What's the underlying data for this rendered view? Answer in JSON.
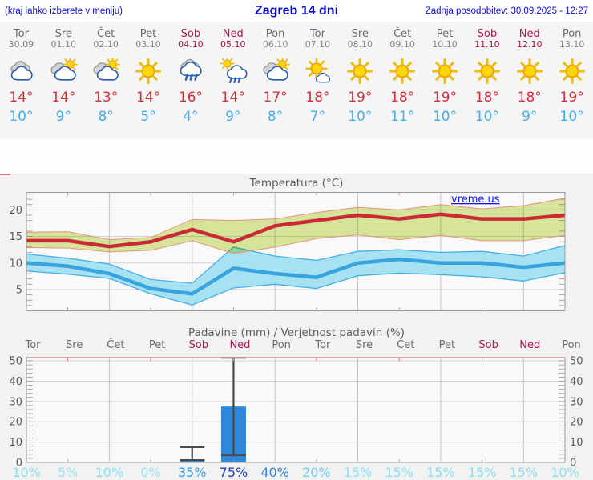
{
  "topbar": {
    "hint": "(kraj lahko izberete v meniju)",
    "title": "Zagreb 14 dni",
    "updated": "Zadnja posodobitev: 30.09.2025 - 12:27"
  },
  "watermark": "vreme.us",
  "forecast": {
    "days": [
      {
        "name": "Tor",
        "date": "30.09",
        "icon": "cloudy",
        "tmax": "14°",
        "tmin": "10°",
        "weekend": false
      },
      {
        "name": "Sre",
        "date": "01.10",
        "icon": "partly-cloudy",
        "tmax": "14°",
        "tmin": "9°",
        "weekend": false
      },
      {
        "name": "Čet",
        "date": "02.10",
        "icon": "partly-cloudy",
        "tmax": "13°",
        "tmin": "8°",
        "weekend": false
      },
      {
        "name": "Pet",
        "date": "03.10",
        "icon": "sunny",
        "tmax": "14°",
        "tmin": "5°",
        "weekend": false
      },
      {
        "name": "Sob",
        "date": "04.10",
        "icon": "rain",
        "tmax": "16°",
        "tmin": "4°",
        "weekend": true
      },
      {
        "name": "Ned",
        "date": "05.10",
        "icon": "sun-shower",
        "tmax": "14°",
        "tmin": "9°",
        "weekend": true
      },
      {
        "name": "Pon",
        "date": "06.10",
        "icon": "partly-cloudy",
        "tmax": "17°",
        "tmin": "8°",
        "weekend": false
      },
      {
        "name": "Tor",
        "date": "07.10",
        "icon": "mostly-sunny",
        "tmax": "18°",
        "tmin": "7°",
        "weekend": false
      },
      {
        "name": "Sre",
        "date": "08.10",
        "icon": "sunny",
        "tmax": "19°",
        "tmin": "10°",
        "weekend": false
      },
      {
        "name": "Čet",
        "date": "09.10",
        "icon": "sunny",
        "tmax": "18°",
        "tmin": "11°",
        "weekend": false
      },
      {
        "name": "Pet",
        "date": "10.10",
        "icon": "sunny",
        "tmax": "19°",
        "tmin": "10°",
        "weekend": false
      },
      {
        "name": "Sob",
        "date": "11.10",
        "icon": "sunny",
        "tmax": "18°",
        "tmin": "10°",
        "weekend": true
      },
      {
        "name": "Ned",
        "date": "12.10",
        "icon": "sunny",
        "tmax": "18°",
        "tmin": "9°",
        "weekend": true
      },
      {
        "name": "Pon",
        "date": "13.10",
        "icon": "sunny",
        "tmax": "19°",
        "tmin": "10°",
        "weekend": false
      }
    ]
  },
  "chart_data": [
    {
      "type": "line",
      "title": "Temperatura (°C)",
      "ylim": [
        1,
        23.3
      ],
      "yticks": [
        5,
        10,
        15,
        20
      ],
      "grid": "on",
      "legend_position": "none",
      "watermark": "vreme.us",
      "series": [
        {
          "name": "tmax",
          "label": "max temperatura",
          "color": "#c92a35",
          "values": [
            14.2,
            14.2,
            13.1,
            14,
            16.3,
            14,
            17,
            18,
            19,
            18.3,
            19.2,
            18.3,
            18.3,
            19
          ]
        },
        {
          "name": "tmax_upper",
          "label": "max razpon zgornja meja",
          "color": "#dcea9e",
          "values": [
            15.8,
            15.9,
            14.4,
            14.8,
            18.2,
            18,
            18.3,
            19.5,
            20.5,
            20,
            21,
            20.2,
            20.8,
            22.2
          ]
        },
        {
          "name": "tmax_lower",
          "label": "max razpon spodnja meja",
          "color": "#dcea9e",
          "values": [
            12.9,
            12.8,
            12.1,
            12.4,
            14.2,
            11.8,
            13,
            14.6,
            15.3,
            14.4,
            15.2,
            14.2,
            14.2,
            15.2
          ]
        },
        {
          "name": "tmin",
          "label": "min temperatura",
          "color": "#38a3dd",
          "values": [
            10,
            9.4,
            8,
            5.2,
            4.2,
            9,
            8,
            7.3,
            10,
            10.7,
            10,
            10,
            9.2,
            10
          ]
        },
        {
          "name": "tmin_upper",
          "label": "min razpon zgornja meja",
          "color": "#a7e2f3",
          "values": [
            11.7,
            10.9,
            9.8,
            6.9,
            6.2,
            13,
            11.3,
            10.5,
            12.2,
            12.5,
            12,
            12.2,
            11.3,
            13.3
          ]
        },
        {
          "name": "tmin_lower",
          "label": "min razpon spodnja meja",
          "color": "#a7e2f3",
          "values": [
            8.5,
            7.9,
            7.1,
            4.2,
            2.1,
            5.3,
            6,
            5.2,
            7.6,
            8.1,
            7.8,
            7.4,
            6.6,
            8.2
          ]
        }
      ]
    },
    {
      "type": "bar",
      "title": "Padavine (mm) / Verjetnost padavin (%)",
      "categories": [
        "Tor",
        "Sre",
        "Čet",
        "Pet",
        "Sob",
        "Ned",
        "Pon",
        "Tor",
        "Sre",
        "Čet",
        "Pet",
        "Sob",
        "Ned",
        "Pon"
      ],
      "weekend_indices": [
        4,
        5,
        11,
        12
      ],
      "ylim": [
        0,
        51.6
      ],
      "yticks": [
        0,
        10,
        20,
        30,
        40,
        50
      ],
      "precip_mm": [
        0,
        0,
        0,
        0,
        1.2,
        27.5,
        0,
        0,
        0,
        0,
        0,
        0,
        0,
        0
      ],
      "whiskers": [
        null,
        null,
        null,
        null,
        {
          "min": 1.2,
          "max": 7.5
        },
        {
          "min": 3.5,
          "max": 51.5
        },
        null,
        null,
        null,
        null,
        null,
        null,
        null,
        null
      ],
      "probability_pct": [
        10,
        5,
        10,
        0,
        35,
        75,
        40,
        20,
        15,
        15,
        15,
        15,
        15,
        10
      ],
      "probability_colors": [
        "#8de0f4",
        "#98e4f6",
        "#8de0f4",
        "#98e4f6",
        "#3f9fe5",
        "#1d40bf",
        "#2f88de",
        "#70d2f0",
        "#8de0f4",
        "#8de0f4",
        "#8de0f4",
        "#8de0f4",
        "#8de0f4",
        "#8de0f4"
      ],
      "bar_color": "#2f87db",
      "whisker_color": "#4a4a4a",
      "top_border_color": "#e8798c"
    }
  ]
}
